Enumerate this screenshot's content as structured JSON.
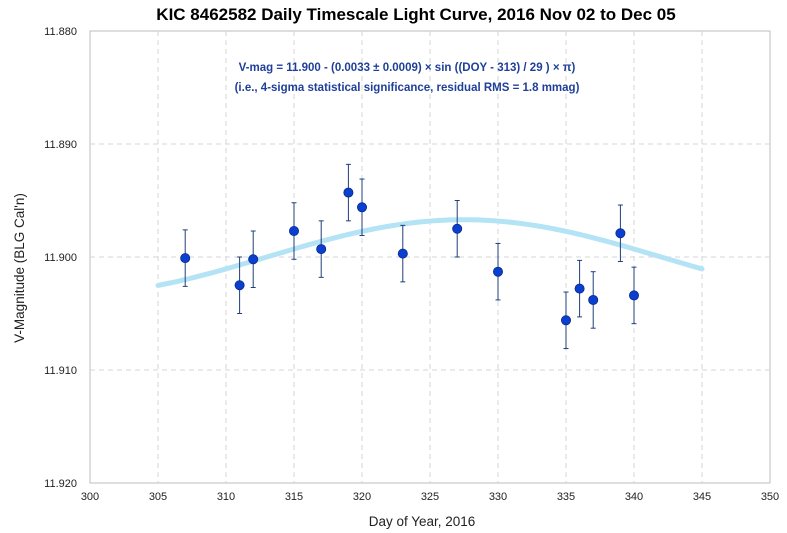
{
  "chart_data": {
    "type": "scatter",
    "title": "KIC 8462582 Daily Timescale Light Curve, 2016 Nov 02 to Dec 05",
    "xlabel": "Day of Year, 2016",
    "ylabel": "V-Magnitude (BLG Cal'n)",
    "xlim": [
      300,
      350
    ],
    "ylim": [
      11.92,
      11.88
    ],
    "y_inverted": true,
    "grid": "dashed both",
    "x_ticks": [
      "300",
      "305",
      "310",
      "315",
      "320",
      "325",
      "330",
      "335",
      "340",
      "345",
      "350"
    ],
    "y_ticks": [
      "11.880",
      "11.890",
      "11.900",
      "11.910",
      "11.920"
    ],
    "annotations": [
      "V-mag = 11.900 - (0.0033 ± 0.0009) × sin ((DOY - 313) / 29 ) × π)",
      "(i.e., 4-sigma statistical significance, residual RMS = 1.8 mmag)"
    ],
    "series": [
      {
        "kind": "data-with-errorbars",
        "color": "#0b3fcf",
        "points": [
          {
            "x": 307,
            "y": 11.9001,
            "err": 0.0025
          },
          {
            "x": 311,
            "y": 11.9025,
            "err": 0.0025
          },
          {
            "x": 312,
            "y": 11.9002,
            "err": 0.0025
          },
          {
            "x": 315,
            "y": 11.8977,
            "err": 0.0025
          },
          {
            "x": 317,
            "y": 11.8993,
            "err": 0.0025
          },
          {
            "x": 319,
            "y": 11.8943,
            "err": 0.0025
          },
          {
            "x": 320,
            "y": 11.8956,
            "err": 0.0025
          },
          {
            "x": 323,
            "y": 11.8997,
            "err": 0.0025
          },
          {
            "x": 327,
            "y": 11.8975,
            "err": 0.0025
          },
          {
            "x": 330,
            "y": 11.9013,
            "err": 0.0025
          },
          {
            "x": 335,
            "y": 11.9056,
            "err": 0.0025
          },
          {
            "x": 336,
            "y": 11.9028,
            "err": 0.0025
          },
          {
            "x": 337,
            "y": 11.9038,
            "err": 0.0025
          },
          {
            "x": 339,
            "y": 11.8979,
            "err": 0.0025
          },
          {
            "x": 340,
            "y": 11.9034,
            "err": 0.0025
          }
        ]
      },
      {
        "kind": "model-fit",
        "color": "#b3e3f5",
        "model": {
          "offset": 11.9,
          "amplitude": 0.0033,
          "phase_doy": 313,
          "period_divisor": 29,
          "x_range": [
            305,
            345
          ]
        }
      }
    ]
  }
}
